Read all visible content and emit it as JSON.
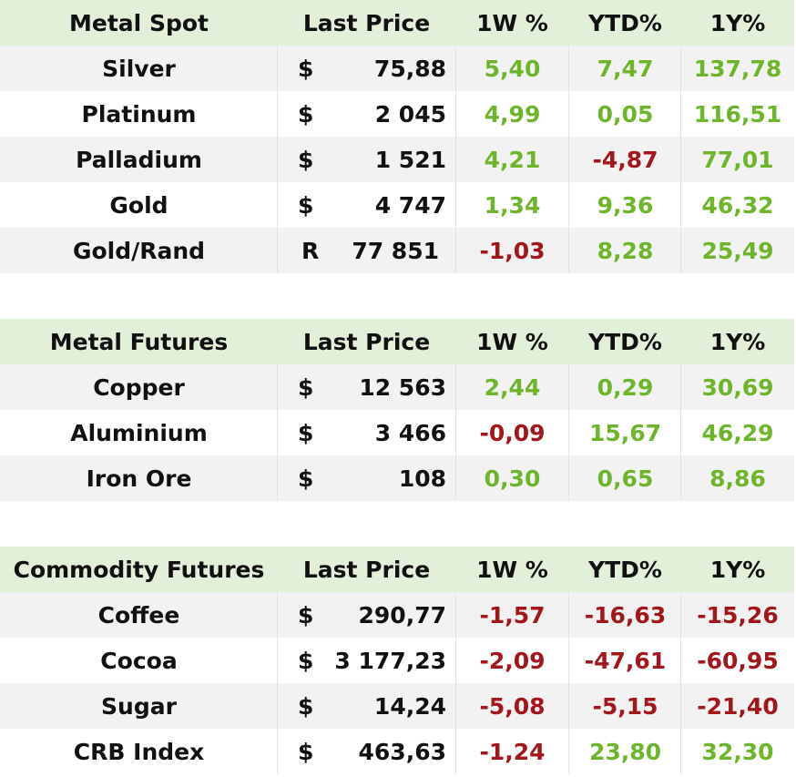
{
  "colors": {
    "header_bg": "#e2f0d9",
    "row_alt_bg": "#f2f2f2",
    "positive": "#6fb52c",
    "negative": "#a3171c"
  },
  "sections": [
    {
      "title": "Metal Spot",
      "headers": {
        "price": "Last Price",
        "w": "1W %",
        "ytd": "YTD%",
        "y": "1Y%"
      },
      "rows": [
        {
          "name": "Silver",
          "cur": "$",
          "price": "75,88",
          "w": "5,40",
          "ytd": "7,47",
          "y": "137,78"
        },
        {
          "name": "Platinum",
          "cur": "$",
          "price": "2 045",
          "w": "4,99",
          "ytd": "0,05",
          "y": "116,51"
        },
        {
          "name": "Palladium",
          "cur": "$",
          "price": "1 521",
          "w": "4,21",
          "ytd": "-4,87",
          "y": "77,01"
        },
        {
          "name": "Gold",
          "cur": "$",
          "price": "4 747",
          "w": "1,34",
          "ytd": "9,36",
          "y": "46,32"
        },
        {
          "name": "Gold/Rand",
          "cur": "R",
          "price": "77 851",
          "w": "-1,03",
          "ytd": "8,28",
          "y": "25,49"
        }
      ]
    },
    {
      "title": "Metal Futures",
      "headers": {
        "price": "Last Price",
        "w": "1W %",
        "ytd": "YTD%",
        "y": "1Y%"
      },
      "rows": [
        {
          "name": "Copper",
          "cur": "$",
          "price": "12 563",
          "w": "2,44",
          "ytd": "0,29",
          "y": "30,69"
        },
        {
          "name": "Aluminium",
          "cur": "$",
          "price": "3 466",
          "w": "-0,09",
          "ytd": "15,67",
          "y": "46,29"
        },
        {
          "name": "Iron Ore",
          "cur": "$",
          "price": "108",
          "w": "0,30",
          "ytd": "0,65",
          "y": "8,86"
        }
      ]
    },
    {
      "title": "Commodity Futures",
      "headers": {
        "price": "Last Price",
        "w": "1W %",
        "ytd": "YTD%",
        "y": "1Y%"
      },
      "rows": [
        {
          "name": "Coffee",
          "cur": "$",
          "price": "290,77",
          "w": "-1,57",
          "ytd": "-16,63",
          "y": "-15,26"
        },
        {
          "name": "Cocoa",
          "cur": "$",
          "price": "3 177,23",
          "w": "-2,09",
          "ytd": "-47,61",
          "y": "-60,95"
        },
        {
          "name": "Sugar",
          "cur": "$",
          "price": "14,24",
          "w": "-5,08",
          "ytd": "-5,15",
          "y": "-21,40"
        },
        {
          "name": "CRB Index",
          "cur": "$",
          "price": "463,63",
          "w": "-1,24",
          "ytd": "23,80",
          "y": "32,30"
        }
      ]
    }
  ]
}
